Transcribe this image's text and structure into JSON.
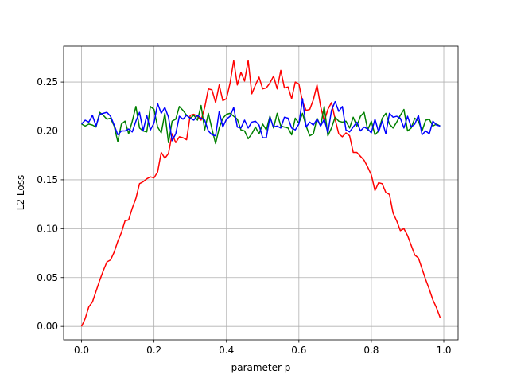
{
  "chart_data": {
    "type": "line",
    "x_label": "parameter p",
    "y_label": "L2 Loss",
    "x": [
      0,
      0.01,
      0.02,
      0.03,
      0.04,
      0.05,
      0.06,
      0.07,
      0.08,
      0.09,
      0.1,
      0.11,
      0.12,
      0.13,
      0.14,
      0.15,
      0.16,
      0.17,
      0.18,
      0.19,
      0.2,
      0.21,
      0.22,
      0.23,
      0.24,
      0.25,
      0.26,
      0.27,
      0.28,
      0.29,
      0.3,
      0.31,
      0.32,
      0.33,
      0.34,
      0.35,
      0.36,
      0.37,
      0.38,
      0.39,
      0.4,
      0.41,
      0.42,
      0.43,
      0.44,
      0.45,
      0.46,
      0.47,
      0.48,
      0.49,
      0.5,
      0.51,
      0.52,
      0.53,
      0.54,
      0.55,
      0.56,
      0.57,
      0.58,
      0.59,
      0.6,
      0.61,
      0.62,
      0.63,
      0.64,
      0.65,
      0.66,
      0.67,
      0.68,
      0.69,
      0.7,
      0.71,
      0.72,
      0.73,
      0.74,
      0.75,
      0.76,
      0.77,
      0.78,
      0.79,
      0.8,
      0.81,
      0.82,
      0.83,
      0.84,
      0.85,
      0.86,
      0.87,
      0.88,
      0.89,
      0.9,
      0.91,
      0.92,
      0.93,
      0.94,
      0.95,
      0.96,
      0.97,
      0.98,
      0.99
    ],
    "series": [
      {
        "color": "#ff0000",
        "values": [
          0.0,
          0.008,
          0.02,
          0.025,
          0.036,
          0.047,
          0.057,
          0.066,
          0.068,
          0.076,
          0.087,
          0.096,
          0.108,
          0.109,
          0.121,
          0.131,
          0.146,
          0.148,
          0.151,
          0.153,
          0.152,
          0.158,
          0.178,
          0.172,
          0.177,
          0.197,
          0.188,
          0.194,
          0.193,
          0.191,
          0.216,
          0.217,
          0.215,
          0.211,
          0.224,
          0.243,
          0.242,
          0.229,
          0.247,
          0.231,
          0.233,
          0.249,
          0.272,
          0.247,
          0.26,
          0.251,
          0.272,
          0.238,
          0.247,
          0.255,
          0.243,
          0.244,
          0.249,
          0.256,
          0.243,
          0.262,
          0.244,
          0.245,
          0.233,
          0.25,
          0.248,
          0.23,
          0.221,
          0.222,
          0.232,
          0.247,
          0.225,
          0.21,
          0.222,
          0.229,
          0.212,
          0.197,
          0.194,
          0.198,
          0.195,
          0.178,
          0.178,
          0.174,
          0.17,
          0.163,
          0.155,
          0.139,
          0.147,
          0.146,
          0.137,
          0.135,
          0.116,
          0.108,
          0.098,
          0.1,
          0.093,
          0.083,
          0.073,
          0.07,
          0.059,
          0.048,
          0.038,
          0.027,
          0.019,
          0.009
        ]
      },
      {
        "color": "#008000",
        "values": [
          0.207,
          0.205,
          0.207,
          0.206,
          0.204,
          0.219,
          0.216,
          0.212,
          0.213,
          0.205,
          0.189,
          0.207,
          0.21,
          0.197,
          0.21,
          0.225,
          0.203,
          0.2,
          0.199,
          0.225,
          0.222,
          0.204,
          0.198,
          0.218,
          0.188,
          0.21,
          0.212,
          0.225,
          0.221,
          0.216,
          0.213,
          0.216,
          0.211,
          0.226,
          0.201,
          0.218,
          0.202,
          0.187,
          0.203,
          0.213,
          0.217,
          0.218,
          0.215,
          0.212,
          0.201,
          0.2,
          0.192,
          0.197,
          0.204,
          0.197,
          0.207,
          0.201,
          0.215,
          0.203,
          0.218,
          0.205,
          0.204,
          0.203,
          0.196,
          0.213,
          0.208,
          0.218,
          0.205,
          0.195,
          0.197,
          0.213,
          0.205,
          0.225,
          0.195,
          0.203,
          0.214,
          0.21,
          0.209,
          0.21,
          0.203,
          0.214,
          0.205,
          0.215,
          0.219,
          0.201,
          0.21,
          0.196,
          0.2,
          0.213,
          0.218,
          0.207,
          0.203,
          0.209,
          0.216,
          0.222,
          0.2,
          0.203,
          0.213,
          0.21,
          0.2,
          0.211,
          0.212,
          0.205,
          0.207,
          0.205
        ]
      },
      {
        "color": "#0000ff",
        "values": [
          0.207,
          0.211,
          0.209,
          0.216,
          0.205,
          0.217,
          0.218,
          0.219,
          0.215,
          0.206,
          0.196,
          0.2,
          0.2,
          0.202,
          0.199,
          0.21,
          0.219,
          0.2,
          0.216,
          0.201,
          0.208,
          0.228,
          0.218,
          0.224,
          0.214,
          0.19,
          0.197,
          0.215,
          0.212,
          0.216,
          0.213,
          0.211,
          0.216,
          0.213,
          0.211,
          0.2,
          0.196,
          0.195,
          0.22,
          0.204,
          0.212,
          0.215,
          0.224,
          0.204,
          0.203,
          0.211,
          0.203,
          0.209,
          0.21,
          0.206,
          0.193,
          0.193,
          0.214,
          0.204,
          0.205,
          0.203,
          0.214,
          0.213,
          0.203,
          0.201,
          0.207,
          0.233,
          0.204,
          0.209,
          0.206,
          0.212,
          0.205,
          0.212,
          0.198,
          0.221,
          0.23,
          0.22,
          0.225,
          0.201,
          0.199,
          0.204,
          0.209,
          0.2,
          0.204,
          0.202,
          0.198,
          0.212,
          0.199,
          0.21,
          0.197,
          0.218,
          0.214,
          0.215,
          0.213,
          0.203,
          0.215,
          0.204,
          0.207,
          0.216,
          0.196,
          0.2,
          0.197,
          0.21,
          0.206,
          0.205
        ]
      }
    ],
    "xlim": [
      -0.0495,
      1.0395
    ],
    "ylim": [
      -0.0137,
      0.2867
    ],
    "xticks": [
      {
        "value": 0,
        "label": "0.0"
      },
      0.2,
      0.4,
      0.6,
      0.8,
      {
        "value": 1,
        "label": "1.0"
      }
    ],
    "yticks": [
      {
        "value": 0,
        "label": "0.00"
      },
      0.05,
      {
        "value": 0.1,
        "label": "0.10"
      },
      0.15,
      {
        "value": 0.2,
        "label": "0.20"
      },
      0.25
    ],
    "grid": true
  }
}
